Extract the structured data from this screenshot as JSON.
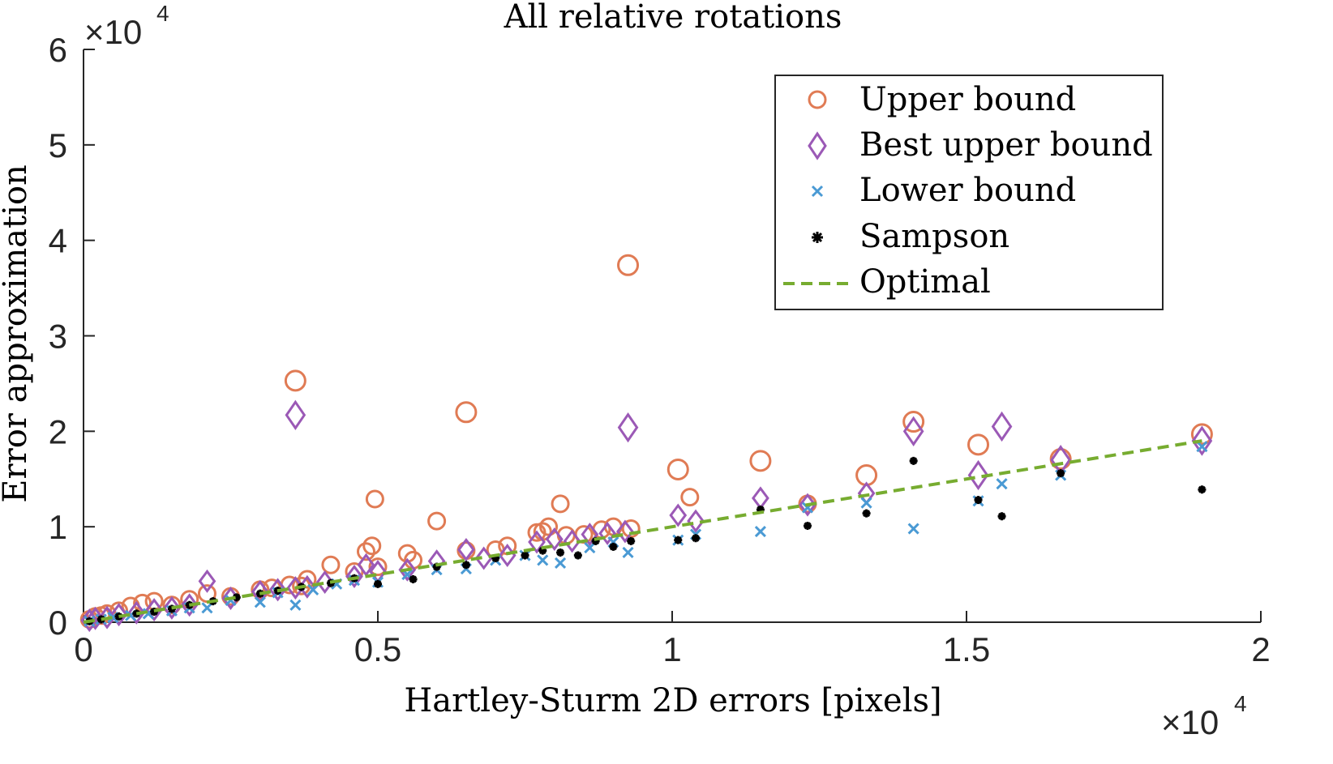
{
  "chart_data": {
    "type": "scatter",
    "title": "All relative rotations",
    "xlabel": "Hartley-Sturm 2D errors [pixels]",
    "ylabel": "Error approximation",
    "x_exponent_label": "×10",
    "x_exponent": "4",
    "y_exponent_label": "×10",
    "y_exponent": "4",
    "xlim": [
      0,
      20000
    ],
    "ylim": [
      0,
      60000
    ],
    "x_ticks": [
      0,
      5000,
      10000,
      15000,
      20000
    ],
    "x_tick_labels": [
      "0",
      "0.5",
      "1",
      "1.5",
      "2"
    ],
    "y_ticks": [
      0,
      10000,
      20000,
      30000,
      40000,
      50000,
      60000
    ],
    "y_tick_labels": [
      "0",
      "1",
      "2",
      "3",
      "4",
      "5",
      "6"
    ],
    "grid": false,
    "legend_position": "top-right",
    "colors": {
      "upper": "#E07B54",
      "best_upper": "#9B59B6",
      "lower": "#4A9AD4",
      "sampson": "#000000",
      "optimal": "#77AC30",
      "axis": "#262626"
    },
    "series": [
      {
        "name": "Upper bound",
        "marker": "circle",
        "x": [
          100,
          200,
          300,
          400,
          600,
          800,
          1000,
          1200,
          1500,
          1800,
          2100,
          2500,
          3000,
          3200,
          3500,
          3700,
          3800,
          4200,
          4600,
          4800,
          4900,
          5000,
          5500,
          5600,
          6000,
          6500,
          7000,
          7200,
          7700,
          7900,
          8200,
          8500,
          8800,
          9000,
          9300,
          3600,
          6500,
          4950,
          9250,
          7800,
          8100,
          10100,
          10300,
          11500,
          12300,
          13300,
          14100,
          15200,
          16600,
          19000
        ],
        "y": [
          300,
          600,
          700,
          900,
          1200,
          1700,
          2000,
          2200,
          1800,
          2400,
          3000,
          2700,
          3400,
          3600,
          3900,
          3800,
          4500,
          6000,
          5300,
          7400,
          8000,
          5800,
          7200,
          6500,
          10600,
          7500,
          7600,
          8000,
          9400,
          10000,
          9100,
          9200,
          9700,
          10000,
          9800,
          25300,
          22000,
          12900,
          37400,
          9500,
          12400,
          16000,
          13100,
          16900,
          12400,
          15400,
          21000,
          18600,
          17100,
          19700
        ]
      },
      {
        "name": "Best upper bound",
        "marker": "diamond",
        "x": [
          100,
          200,
          400,
          600,
          900,
          1200,
          1500,
          1800,
          2100,
          2500,
          3000,
          3300,
          3600,
          3800,
          4100,
          4600,
          4800,
          5000,
          5500,
          6000,
          6500,
          6800,
          7200,
          7700,
          8000,
          8300,
          8600,
          8900,
          9200,
          3600,
          9250,
          10100,
          10400,
          11500,
          12300,
          13300,
          14100,
          15200,
          15600,
          16600,
          19000
        ],
        "y": [
          200,
          400,
          500,
          800,
          1000,
          1300,
          1500,
          1800,
          4300,
          2500,
          3200,
          3400,
          3600,
          3700,
          4200,
          4800,
          6000,
          5300,
          5500,
          6400,
          7600,
          6700,
          7000,
          8400,
          8700,
          8500,
          9200,
          9300,
          9500,
          21700,
          20400,
          11200,
          10600,
          13000,
          12300,
          13500,
          20000,
          15400,
          20500,
          17000,
          19000
        ]
      },
      {
        "name": "Lower bound",
        "marker": "x",
        "x": [
          100,
          300,
          500,
          800,
          1100,
          1500,
          1800,
          2100,
          2500,
          3000,
          3300,
          3600,
          3900,
          4300,
          4600,
          5000,
          5500,
          6000,
          6500,
          7000,
          7500,
          7800,
          8100,
          8600,
          9000,
          9250,
          10100,
          10400,
          11500,
          12300,
          13300,
          14100,
          15200,
          15600,
          16600,
          19000
        ],
        "y": [
          100,
          300,
          500,
          700,
          900,
          1200,
          1500,
          1500,
          2300,
          2100,
          3100,
          1800,
          3400,
          4000,
          4400,
          4200,
          5000,
          5500,
          5600,
          6500,
          7000,
          6500,
          6200,
          7800,
          8400,
          7300,
          8600,
          9200,
          9500,
          12000,
          12500,
          9800,
          12700,
          14500,
          15400,
          18400
        ]
      },
      {
        "name": "Sampson",
        "marker": "asterisk",
        "x": [
          100,
          300,
          600,
          900,
          1200,
          1500,
          1800,
          2200,
          2600,
          3000,
          3300,
          3700,
          4200,
          4600,
          5000,
          5600,
          6000,
          6500,
          7000,
          7500,
          7800,
          8100,
          8400,
          8700,
          9000,
          9300,
          10100,
          10400,
          11500,
          12300,
          13300,
          14100,
          15200,
          15600,
          16600,
          19000
        ],
        "y": [
          100,
          300,
          600,
          900,
          1100,
          1400,
          1800,
          2200,
          2600,
          3000,
          3300,
          3700,
          4100,
          4600,
          4000,
          4500,
          5800,
          6000,
          6700,
          7000,
          7500,
          7300,
          7000,
          8500,
          7900,
          8500,
          8600,
          8800,
          11800,
          10100,
          11400,
          16900,
          12800,
          11100,
          15600,
          13900
        ]
      },
      {
        "name": "Optimal",
        "marker": "dashed-line",
        "x": [
          0,
          19000
        ],
        "y": [
          0,
          19000
        ]
      }
    ]
  }
}
